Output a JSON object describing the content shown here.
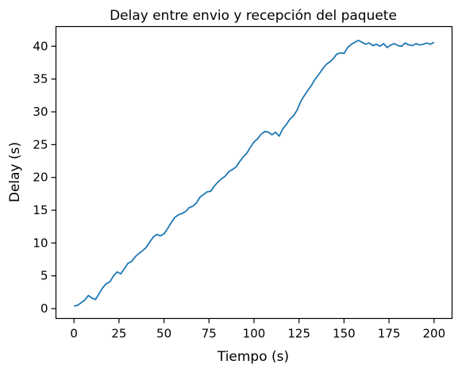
{
  "chart_data": {
    "type": "line",
    "title": "Delay entre envio y recepción del paquete",
    "xlabel": "Tiempo (s)",
    "ylabel": "Delay (s)",
    "xlim": [
      -10,
      210
    ],
    "ylim": [
      -1.5,
      43
    ],
    "xticks": [
      0,
      25,
      50,
      75,
      100,
      125,
      150,
      175,
      200
    ],
    "xtick_labels": [
      "0",
      "25",
      "50",
      "75",
      "100",
      "125",
      "150",
      "175",
      "200"
    ],
    "yticks": [
      0,
      5,
      10,
      15,
      20,
      25,
      30,
      35,
      40
    ],
    "ytick_labels": [
      "0",
      "5",
      "10",
      "15",
      "20",
      "25",
      "30",
      "35",
      "40"
    ],
    "grid": false,
    "series": [
      {
        "color": "#1f77b4",
        "x": [
          0,
          2,
          4,
          6,
          8,
          10,
          12,
          14,
          16,
          18,
          20,
          22,
          24,
          26,
          28,
          30,
          32,
          34,
          36,
          38,
          40,
          42,
          44,
          46,
          48,
          50,
          52,
          54,
          56,
          58,
          60,
          62,
          64,
          66,
          68,
          70,
          72,
          74,
          76,
          78,
          80,
          82,
          84,
          86,
          88,
          90,
          92,
          94,
          96,
          98,
          100,
          102,
          104,
          106,
          108,
          110,
          112,
          114,
          116,
          118,
          120,
          122,
          124,
          126,
          128,
          130,
          132,
          134,
          136,
          138,
          140,
          142,
          144,
          146,
          148,
          150,
          152,
          154,
          156,
          158,
          160,
          162,
          164,
          166,
          168,
          170,
          172,
          174,
          176,
          178,
          180,
          182,
          184,
          186,
          188,
          190,
          192,
          194,
          196,
          198,
          200
        ],
        "y": [
          0.4,
          0.5,
          0.9,
          1.3,
          2.0,
          1.6,
          1.4,
          2.3,
          3.2,
          3.8,
          4.1,
          5.0,
          5.6,
          5.3,
          6.1,
          6.9,
          7.2,
          7.9,
          8.4,
          8.8,
          9.3,
          10.1,
          10.9,
          11.3,
          11.1,
          11.4,
          12.2,
          13.1,
          13.9,
          14.3,
          14.5,
          14.8,
          15.4,
          15.6,
          16.1,
          17.0,
          17.4,
          17.8,
          17.9,
          18.7,
          19.3,
          19.8,
          20.2,
          20.9,
          21.2,
          21.6,
          22.4,
          23.1,
          23.7,
          24.6,
          25.4,
          25.9,
          26.6,
          27.0,
          26.9,
          26.5,
          26.9,
          26.3,
          27.4,
          28.1,
          28.9,
          29.4,
          30.3,
          31.6,
          32.5,
          33.3,
          34.1,
          35.0,
          35.7,
          36.5,
          37.2,
          37.6,
          38.1,
          38.8,
          39.0,
          38.9,
          39.8,
          40.3,
          40.6,
          40.9,
          40.6,
          40.3,
          40.5,
          40.1,
          40.3,
          40.0,
          40.4,
          39.8,
          40.2,
          40.4,
          40.1,
          40.0,
          40.5,
          40.2,
          40.1,
          40.4,
          40.2,
          40.3,
          40.5,
          40.3,
          40.6
        ]
      }
    ]
  }
}
